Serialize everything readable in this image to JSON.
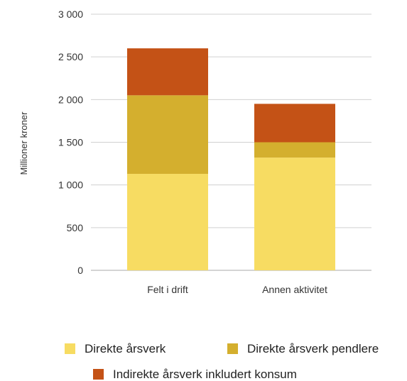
{
  "chart_data": {
    "type": "bar",
    "stacked": true,
    "title": "",
    "xlabel": "",
    "ylabel": "Millioner kroner",
    "ylim": [
      0,
      3000
    ],
    "yticks": [
      0,
      500,
      1000,
      1500,
      2000,
      2500,
      3000
    ],
    "ytick_labels": [
      "0",
      "500",
      "1 000",
      "1 500",
      "2 000",
      "2 500",
      "3 000"
    ],
    "grid": true,
    "legend_position": "bottom",
    "categories": [
      "Felt i drift",
      "Annen aktivitet"
    ],
    "series": [
      {
        "name": "Direkte årsverk",
        "color": "#f7dc62",
        "values": [
          1130,
          1320
        ]
      },
      {
        "name": "Direkte årsverk pendlere",
        "color": "#d4af2e",
        "values": [
          920,
          180
        ]
      },
      {
        "name": "Indirekte årsverk inkludert konsum",
        "color": "#c45216",
        "values": [
          550,
          450
        ]
      }
    ]
  }
}
